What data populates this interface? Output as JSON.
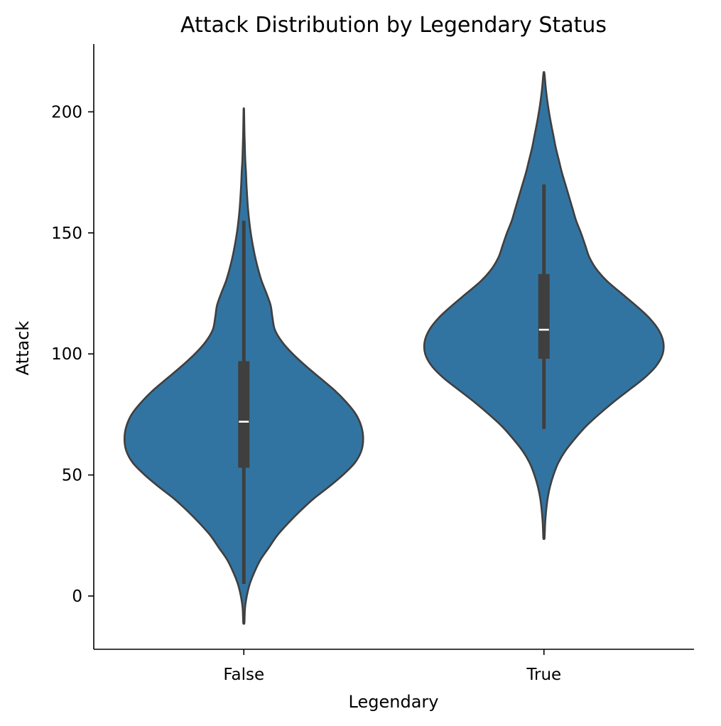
{
  "chart_data": {
    "type": "violin",
    "title": "Attack Distribution by Legendary Status",
    "xlabel": "Legendary",
    "ylabel": "Attack",
    "categories": [
      "False",
      "True"
    ],
    "ylim": [
      -22,
      228
    ],
    "yticks": [
      0,
      50,
      100,
      150,
      200
    ],
    "grid": false,
    "fill_color": "#3274a1",
    "edge_color": "#3f3f3f",
    "box_color": "#3f3f3f",
    "median_color": "#ffffff",
    "violins": [
      {
        "category": "False",
        "min": 5,
        "q1": 53,
        "median": 72,
        "q3": 97,
        "max": 155,
        "kde_range": [
          -11,
          201
        ],
        "profile": [
          [
            -11,
            0.005
          ],
          [
            -5,
            0.01
          ],
          [
            0,
            0.025
          ],
          [
            5,
            0.05
          ],
          [
            10,
            0.09
          ],
          [
            15,
            0.14
          ],
          [
            20,
            0.21
          ],
          [
            25,
            0.28
          ],
          [
            30,
            0.37
          ],
          [
            35,
            0.47
          ],
          [
            40,
            0.58
          ],
          [
            45,
            0.71
          ],
          [
            50,
            0.83
          ],
          [
            55,
            0.93
          ],
          [
            60,
            0.985
          ],
          [
            65,
            1.0
          ],
          [
            70,
            0.985
          ],
          [
            75,
            0.94
          ],
          [
            80,
            0.86
          ],
          [
            85,
            0.76
          ],
          [
            90,
            0.64
          ],
          [
            95,
            0.52
          ],
          [
            100,
            0.41
          ],
          [
            105,
            0.32
          ],
          [
            110,
            0.26
          ],
          [
            115,
            0.24
          ],
          [
            120,
            0.225
          ],
          [
            125,
            0.19
          ],
          [
            130,
            0.15
          ],
          [
            135,
            0.12
          ],
          [
            140,
            0.095
          ],
          [
            145,
            0.075
          ],
          [
            150,
            0.058
          ],
          [
            155,
            0.045
          ],
          [
            160,
            0.035
          ],
          [
            165,
            0.028
          ],
          [
            170,
            0.022
          ],
          [
            175,
            0.018
          ],
          [
            180,
            0.012
          ],
          [
            185,
            0.009
          ],
          [
            190,
            0.006
          ],
          [
            195,
            0.004
          ],
          [
            201,
            0.002
          ]
        ]
      },
      {
        "category": "True",
        "min": 69,
        "q1": 98,
        "median": 110,
        "q3": 133,
        "max": 170,
        "kde_range": [
          24,
          216
        ],
        "profile": [
          [
            24,
            0.005
          ],
          [
            30,
            0.01
          ],
          [
            35,
            0.018
          ],
          [
            40,
            0.03
          ],
          [
            45,
            0.05
          ],
          [
            50,
            0.08
          ],
          [
            55,
            0.12
          ],
          [
            60,
            0.18
          ],
          [
            65,
            0.26
          ],
          [
            70,
            0.35
          ],
          [
            75,
            0.46
          ],
          [
            80,
            0.58
          ],
          [
            85,
            0.71
          ],
          [
            90,
            0.84
          ],
          [
            95,
            0.94
          ],
          [
            100,
            0.995
          ],
          [
            105,
            1.0
          ],
          [
            110,
            0.96
          ],
          [
            115,
            0.88
          ],
          [
            120,
            0.77
          ],
          [
            125,
            0.65
          ],
          [
            130,
            0.53
          ],
          [
            135,
            0.44
          ],
          [
            140,
            0.38
          ],
          [
            145,
            0.345
          ],
          [
            150,
            0.31
          ],
          [
            155,
            0.27
          ],
          [
            160,
            0.24
          ],
          [
            165,
            0.21
          ],
          [
            170,
            0.18
          ],
          [
            175,
            0.15
          ],
          [
            180,
            0.125
          ],
          [
            185,
            0.1
          ],
          [
            190,
            0.08
          ],
          [
            195,
            0.06
          ],
          [
            200,
            0.042
          ],
          [
            205,
            0.027
          ],
          [
            210,
            0.015
          ],
          [
            216,
            0.004
          ]
        ]
      }
    ]
  }
}
